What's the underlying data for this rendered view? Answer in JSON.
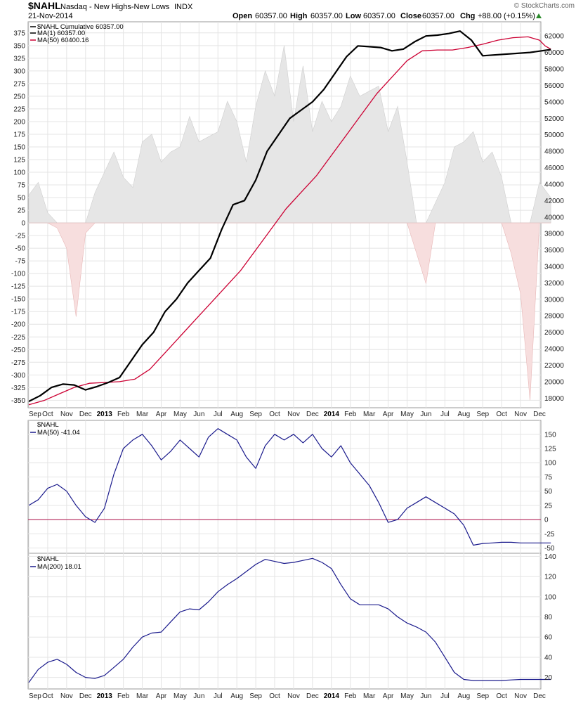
{
  "header": {
    "symbol": "$NAHL",
    "name": "Nasdaq - New Highs-New Lows",
    "type": "INDX",
    "date": "21-Nov-2014",
    "open_label": "Open",
    "open": "60357.00",
    "high_label": "High",
    "high": "60357.00",
    "low_label": "Low",
    "low": "60357.00",
    "close_label": "Close",
    "close": "60357.00",
    "chg_label": "Chg",
    "chg": "+88.00 (+0.15%)",
    "brand": "© StockCharts.com"
  },
  "colors": {
    "cumulative": "#000000",
    "ma50_main": "#cc0033",
    "ma_lower": "#1a1a8c",
    "positive_area": "#e6e6e6",
    "negative_area": "#f7dede",
    "zero_line": "#b0104a",
    "grid": "#e4e4e4",
    "up_arrow": "#2a8a2a"
  },
  "x_axis": {
    "months": [
      "Sep",
      "Oct",
      "Nov",
      "Dec",
      "2013",
      "Feb",
      "Mar",
      "Apr",
      "May",
      "Jun",
      "Jul",
      "Aug",
      "Sep",
      "Oct",
      "Nov",
      "Dec",
      "2014",
      "Feb",
      "Mar",
      "Apr",
      "May",
      "Jun",
      "Jul",
      "Aug",
      "Sep",
      "Oct",
      "Nov",
      "Dec"
    ],
    "bold": [
      "2013",
      "2014"
    ]
  },
  "chart_data": [
    {
      "type": "area+line",
      "panel": "main",
      "title": "$NAHL Nasdaq - New Highs-New Lows INDX",
      "legend": [
        "$NAHL Cumulative 60357.00",
        "MA(1) 60357.00",
        "MA(50) 60400.16"
      ],
      "legend_placement": "top-left",
      "left_axis": {
        "ticks": [
          375,
          350,
          325,
          300,
          275,
          250,
          225,
          200,
          175,
          150,
          125,
          100,
          75,
          50,
          25,
          0,
          -25,
          -50,
          -75,
          -100,
          -125,
          -150,
          -175,
          -200,
          -225,
          -250,
          -275,
          -300,
          -325,
          -350
        ],
        "range": [
          -362,
          390
        ]
      },
      "right_axis": {
        "ticks": [
          62000,
          60000,
          58000,
          56000,
          54000,
          52000,
          50000,
          48000,
          46000,
          44000,
          42000,
          40000,
          38000,
          36000,
          34000,
          32000,
          30000,
          28000,
          26000,
          24000,
          22000,
          20000,
          18000
        ],
        "range": [
          17000,
          63300
        ]
      },
      "x": [
        0,
        0.5,
        1,
        1.5,
        2,
        2.5,
        3,
        3.5,
        4,
        4.5,
        5,
        5.5,
        6,
        6.5,
        7,
        7.5,
        8,
        8.5,
        9,
        9.5,
        10,
        10.5,
        11,
        11.5,
        12,
        12.5,
        13,
        13.5,
        14,
        14.5,
        15,
        15.5,
        16,
        16.5,
        17,
        17.5,
        18,
        18.5,
        19,
        19.5,
        20,
        20.5,
        21,
        21.5,
        22,
        22.5,
        23,
        23.5,
        24,
        24.5,
        25,
        25.5,
        26,
        26.5,
        27,
        27.6
      ],
      "nahl_daily_area": [
        55,
        80,
        20,
        -10,
        -50,
        -185,
        -20,
        60,
        100,
        140,
        90,
        70,
        160,
        175,
        120,
        140,
        150,
        210,
        160,
        170,
        180,
        240,
        200,
        120,
        230,
        300,
        250,
        350,
        200,
        310,
        180,
        240,
        200,
        230,
        290,
        250,
        260,
        270,
        180,
        230,
        120,
        -60,
        -120,
        40,
        80,
        150,
        160,
        180,
        120,
        140,
        90,
        -60,
        -140,
        -350,
        80,
        50
      ],
      "cumulative": [
        17600,
        18300,
        19300,
        19700,
        19600,
        19000,
        19400,
        19900,
        20500,
        22500,
        24500,
        26000,
        28500,
        30000,
        32000,
        33500,
        35000,
        38500,
        41500,
        42000,
        44500,
        48000,
        50000,
        52000,
        53000,
        54000,
        55500,
        57500,
        59500,
        60800,
        60700,
        60600,
        60200,
        60400,
        61300,
        62000,
        62100,
        62300,
        62600,
        61500,
        59600,
        60000,
        60357
      ],
      "cumulative_x": [
        0,
        0.6,
        1.2,
        1.8,
        2.4,
        3,
        3.6,
        4.2,
        4.8,
        5.4,
        6,
        6.6,
        7.2,
        7.8,
        8.4,
        9,
        9.6,
        10.2,
        10.8,
        11.4,
        12,
        12.6,
        13.2,
        13.8,
        14.4,
        15,
        15.6,
        16.2,
        16.8,
        17.4,
        18,
        18.6,
        19.2,
        19.8,
        20.4,
        21,
        21.6,
        22.2,
        22.8,
        23.4,
        24,
        26.5,
        27.6
      ],
      "ma50": [
        17200,
        17700,
        18500,
        19300,
        19800,
        19900,
        20000,
        20300,
        21500,
        23500,
        25500,
        27500,
        29500,
        31500,
        33500,
        36000,
        38500,
        41000,
        43000,
        45000,
        47500,
        50000,
        52500,
        55000,
        57000,
        59000,
        60200,
        60300,
        60300,
        60600,
        61000,
        61500,
        61800,
        61900,
        61500,
        60800,
        60400
      ],
      "ma50_x": [
        0,
        0.8,
        1.6,
        2.4,
        3.2,
        4,
        4.8,
        5.6,
        6.4,
        7.2,
        8,
        8.8,
        9.6,
        10.4,
        11.2,
        12,
        12.8,
        13.6,
        14.4,
        15.2,
        16,
        16.8,
        17.6,
        18.4,
        19.2,
        20,
        20.8,
        21.6,
        22.4,
        23.2,
        24,
        24.8,
        25.6,
        26.4,
        27,
        27.3,
        27.6
      ]
    },
    {
      "type": "line",
      "panel": "middle",
      "legend": [
        "$NAHL",
        "MA(50) -41.04"
      ],
      "legend_placement": "top-left",
      "y_ticks": [
        150,
        125,
        100,
        75,
        50,
        25,
        0,
        -25,
        -50
      ],
      "ylim": [
        -58,
        172
      ],
      "zero_line": 0,
      "x": [
        0,
        0.5,
        1,
        1.5,
        2,
        2.5,
        3,
        3.5,
        4,
        4.5,
        5,
        5.5,
        6,
        6.5,
        7,
        7.5,
        8,
        8.5,
        9,
        9.5,
        10,
        10.5,
        11,
        11.5,
        12,
        12.5,
        13,
        13.5,
        14,
        14.5,
        15,
        15.5,
        16,
        16.5,
        17,
        17.5,
        18,
        18.5,
        19,
        19.5,
        20,
        20.5,
        21,
        21.5,
        22,
        22.5,
        23,
        23.5,
        24,
        24.5,
        25,
        25.5,
        26,
        26.5,
        27,
        27.6
      ],
      "values": [
        25,
        35,
        55,
        62,
        50,
        25,
        5,
        -5,
        20,
        80,
        125,
        140,
        150,
        130,
        105,
        120,
        140,
        125,
        110,
        145,
        160,
        150,
        140,
        110,
        90,
        130,
        150,
        140,
        150,
        135,
        150,
        125,
        110,
        130,
        100,
        80,
        60,
        30,
        -5,
        0,
        20,
        30,
        40,
        30,
        20,
        10,
        -10,
        -45,
        -42,
        -41,
        -40,
        -40,
        -41,
        -41,
        -41,
        -41.04
      ]
    },
    {
      "type": "line",
      "panel": "bottom",
      "legend": [
        "$NAHL",
        "MA(200) 18.01"
      ],
      "legend_placement": "top-left",
      "y_ticks": [
        140,
        120,
        100,
        80,
        60,
        40,
        20
      ],
      "ylim": [
        10,
        141
      ],
      "x": [
        0,
        0.5,
        1,
        1.5,
        2,
        2.5,
        3,
        3.5,
        4,
        4.5,
        5,
        5.5,
        6,
        6.5,
        7,
        7.5,
        8,
        8.5,
        9,
        9.5,
        10,
        10.5,
        11,
        11.5,
        12,
        12.5,
        13,
        13.5,
        14,
        14.5,
        15,
        15.5,
        16,
        16.5,
        17,
        17.5,
        18,
        18.5,
        19,
        19.5,
        20,
        20.5,
        21,
        21.5,
        22,
        22.5,
        23,
        23.5,
        24,
        24.5,
        25,
        25.5,
        26,
        26.5,
        27,
        27.6
      ],
      "values": [
        15,
        28,
        35,
        38,
        33,
        25,
        20,
        19,
        22,
        30,
        38,
        50,
        60,
        64,
        65,
        75,
        85,
        88,
        87,
        95,
        105,
        112,
        118,
        125,
        132,
        137,
        135,
        133,
        134,
        136,
        138,
        134,
        128,
        112,
        98,
        92,
        92,
        92,
        88,
        80,
        74,
        70,
        65,
        55,
        40,
        25,
        18,
        17,
        17,
        17,
        17,
        17.5,
        18,
        18,
        18,
        18.01
      ]
    }
  ]
}
